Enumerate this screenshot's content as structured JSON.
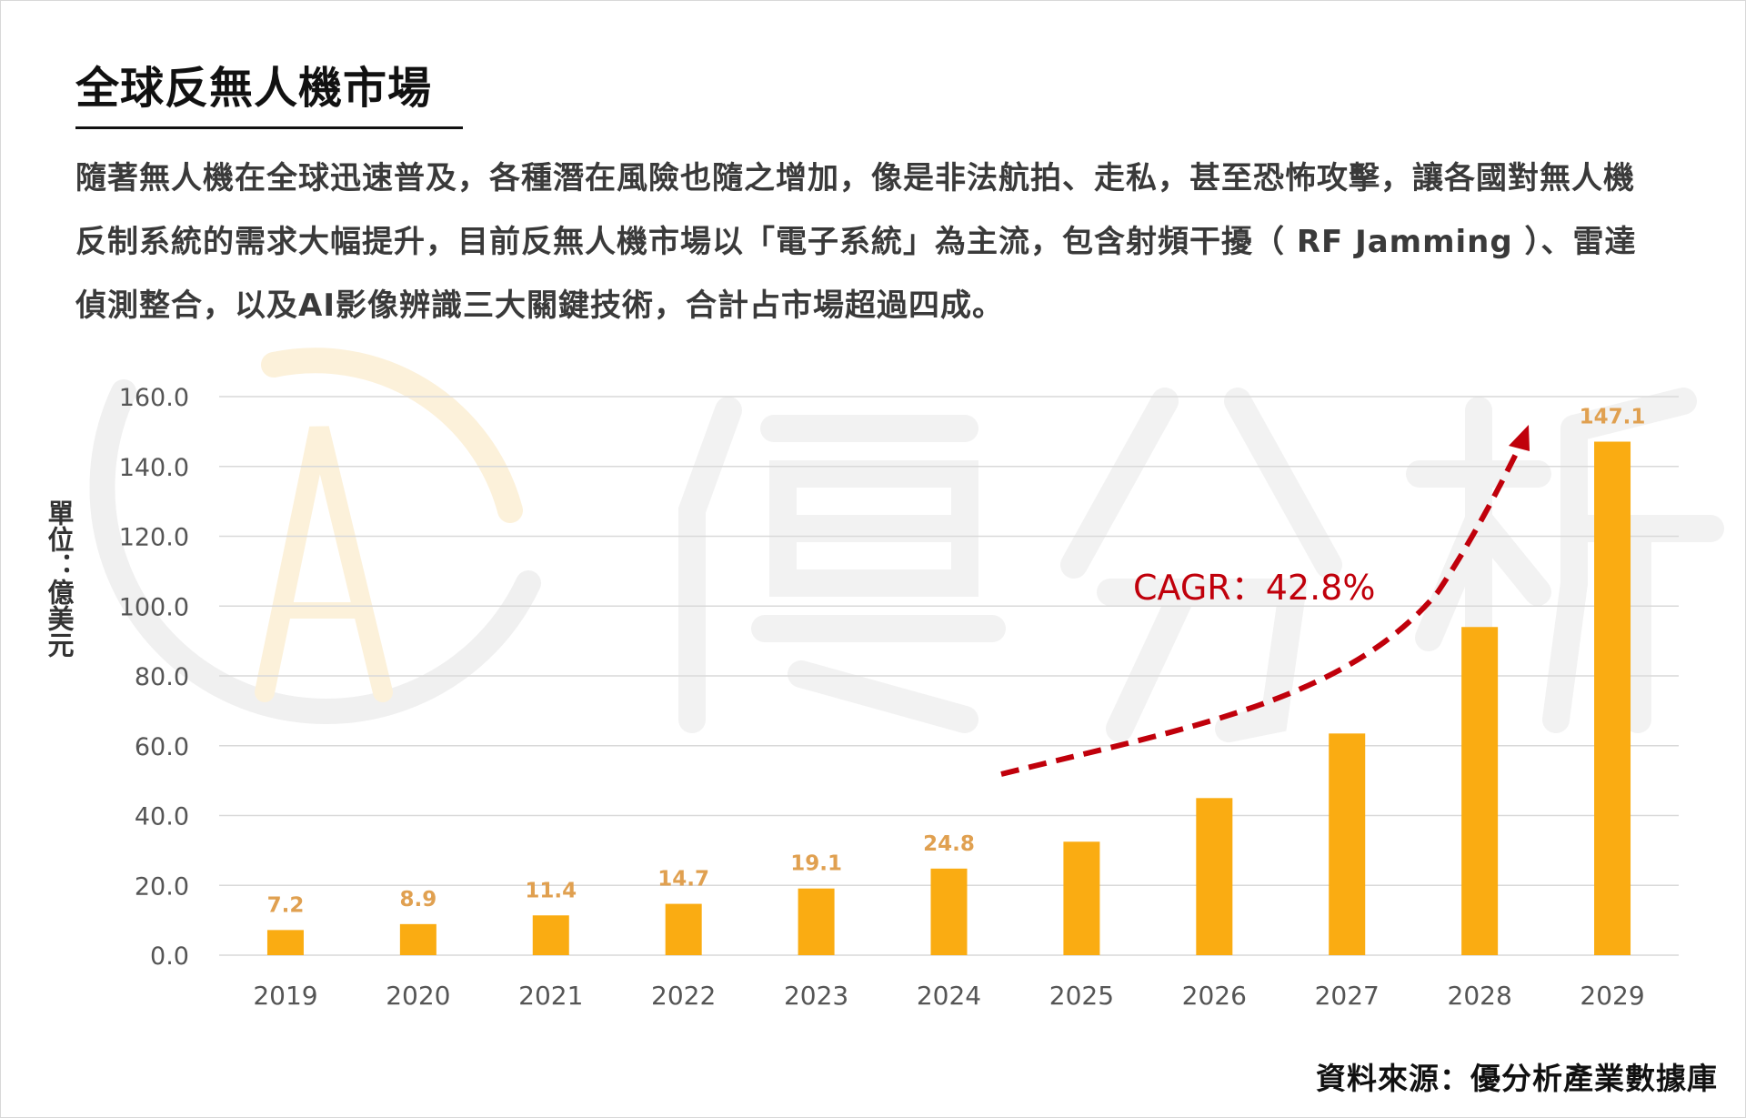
{
  "title": "全球反無人機市場",
  "description": "隨著無人機在全球迅速普及，各種潛在風險也隨之增加，像是非法航拍、走私，甚至恐怖攻擊，讓各國對無人機反制系統的需求大幅提升，目前反無人機市場以「電子系統」為主流，包含射頻干擾（ RF Jamming ）、雷達偵測整合，以及AI影像辨識三大關鍵技術，合計占市場超過四成。",
  "source": "資料來源：優分析產業數據庫",
  "colors": {
    "bar": "#FAAC12",
    "data_label": "#E0A050",
    "cagr": "#C0000B",
    "grid": "#D9D9D9",
    "watermark": "#F1F1F1"
  },
  "watermark_icon": "ua-logo-icon",
  "chart_data": {
    "type": "bar",
    "title": "",
    "xlabel": "",
    "ylabel": "單位：億美元",
    "categories": [
      "2019",
      "2020",
      "2021",
      "2022",
      "2023",
      "2024",
      "2025",
      "2026",
      "2027",
      "2028",
      "2029"
    ],
    "values": [
      7.2,
      8.9,
      11.4,
      14.7,
      19.1,
      24.8,
      32.5,
      45.0,
      63.5,
      94.0,
      147.1
    ],
    "data_labels": [
      "7.2",
      "8.9",
      "11.4",
      "14.7",
      "19.1",
      "24.8",
      "",
      "",
      "",
      "",
      "147.1"
    ],
    "ylim": [
      0,
      160
    ],
    "yticks": [
      "0.0",
      "20.0",
      "40.0",
      "60.0",
      "80.0",
      "100.0",
      "120.0",
      "140.0",
      "160.0"
    ],
    "grid": true,
    "legend": "none",
    "annotation": "CAGR：42.8%"
  }
}
